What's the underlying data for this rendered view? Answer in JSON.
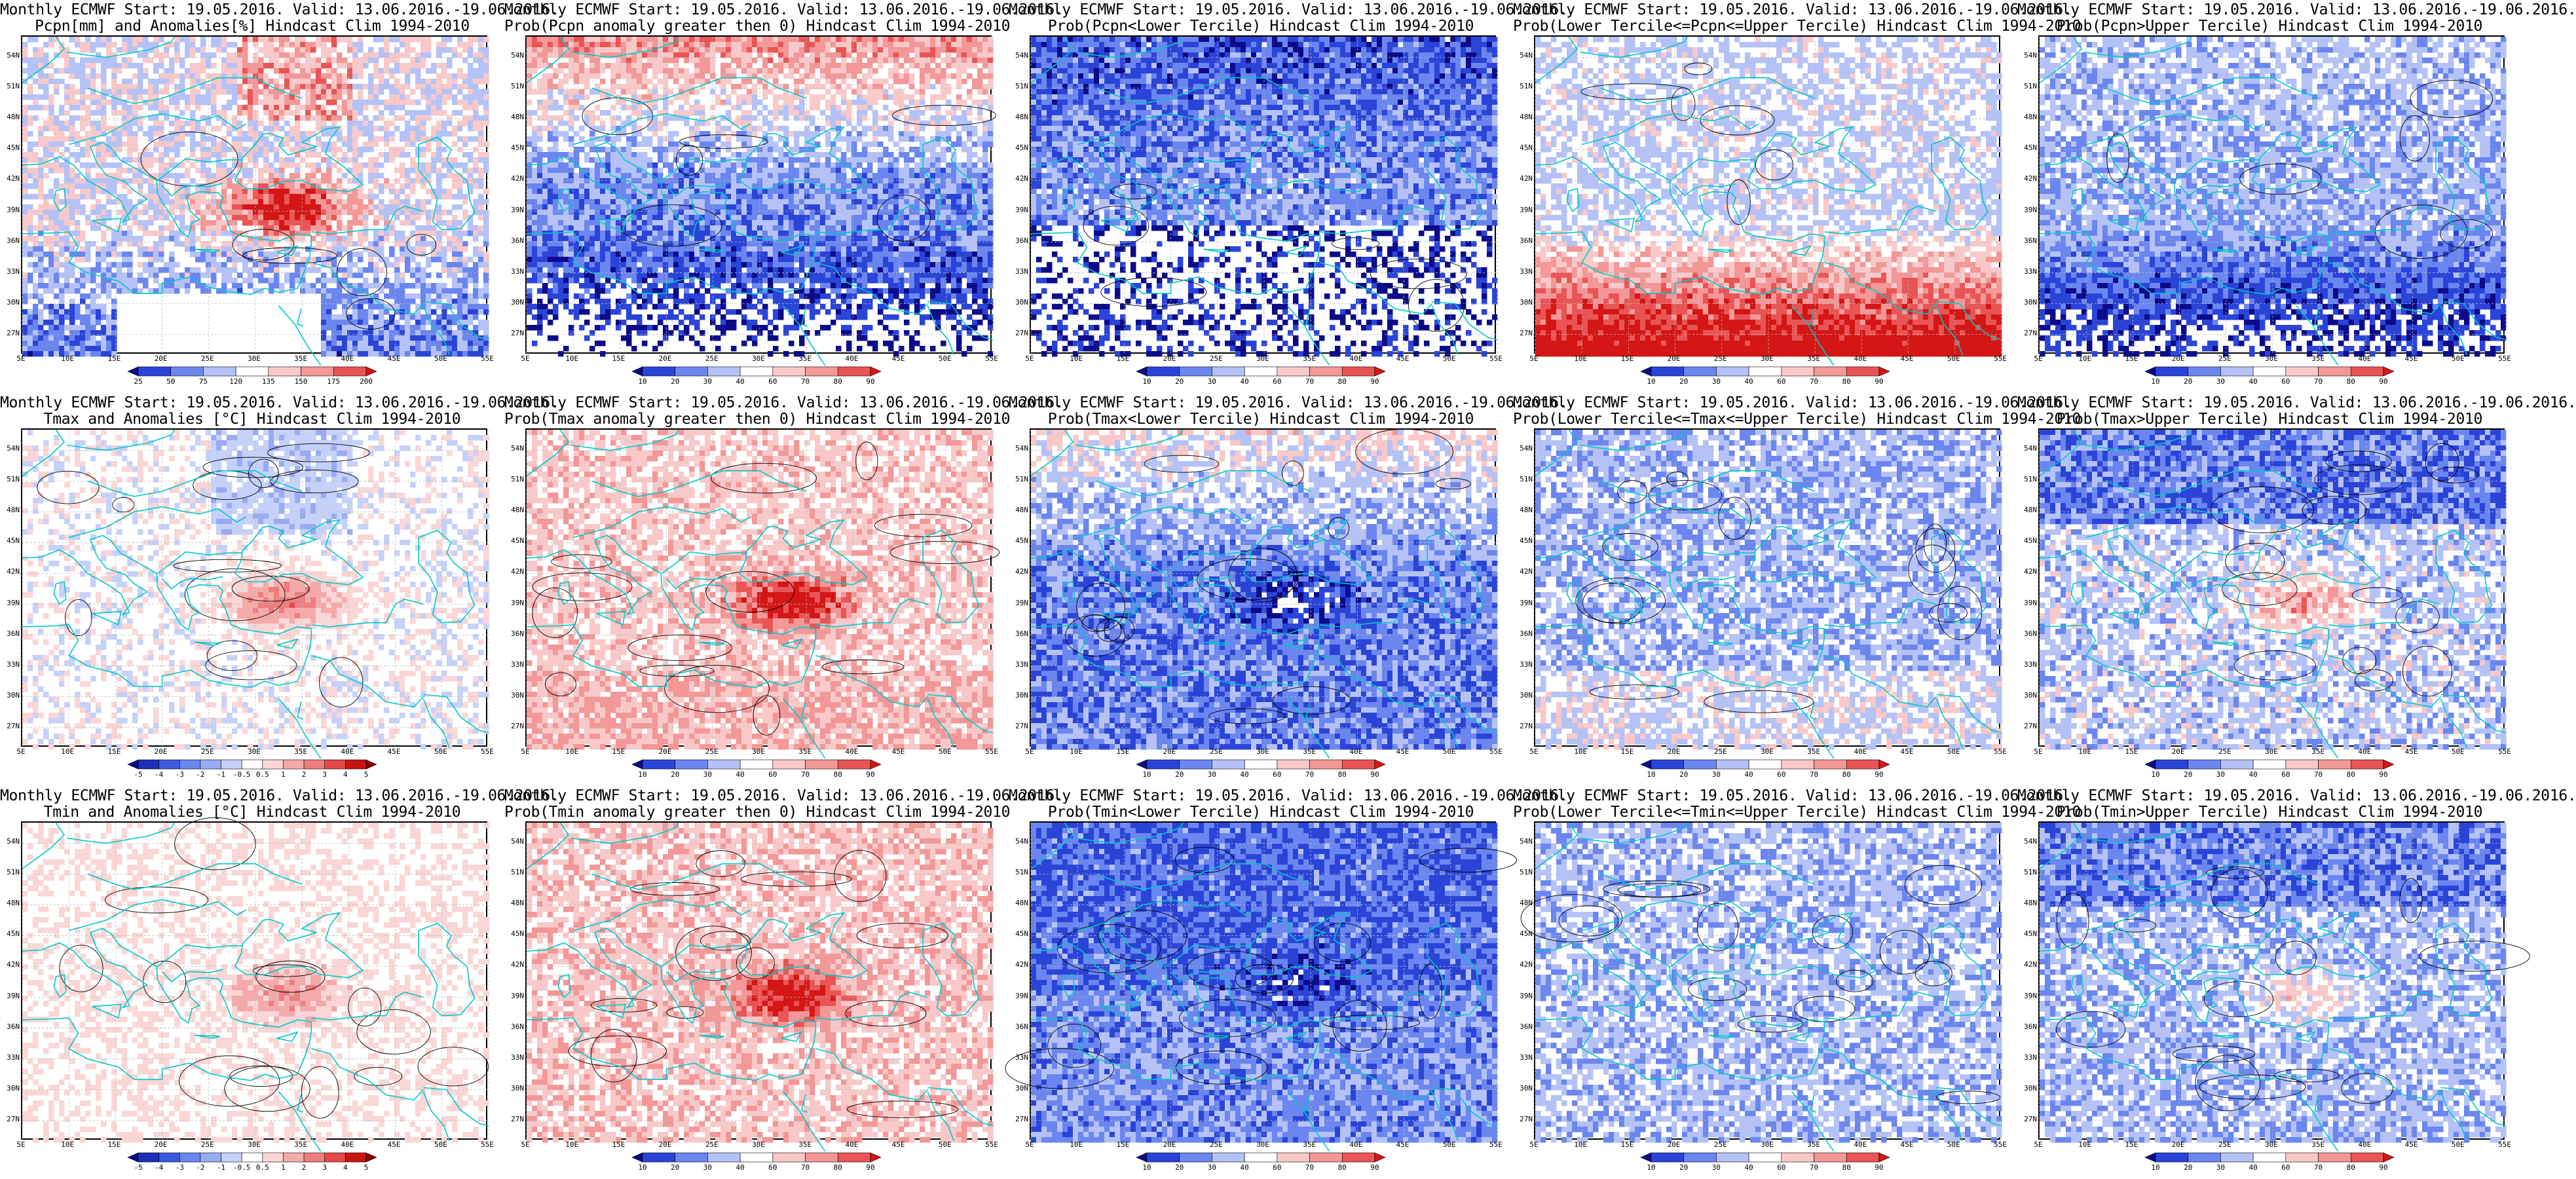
{
  "panels": [
    {
      "line1": "Monthly ECMWF Start: 19.05.2016. Valid: 13.06.2016.-19.06.2016.",
      "line2": "Pcpn[mm] and Anomalies[%] Hindcast Clim 1994-2010",
      "scale": "pcpn",
      "field": "pcpn-anom"
    },
    {
      "line1": "Monthly ECMWF Start: 19.05.2016. Valid: 13.06.2016.-19.06.2016.",
      "line2": "Prob(Pcpn anomaly greater then 0) Hindcast Clim 1994-2010",
      "scale": "prob",
      "field": "pcpn-pos"
    },
    {
      "line1": "Monthly ECMWF Start: 19.05.2016. Valid: 13.06.2016.-19.06.2016.",
      "line2": "Prob(Pcpn<Lower Tercile) Hindcast Clim 1994-2010",
      "scale": "prob",
      "field": "pcpn-lower"
    },
    {
      "line1": "Monthly ECMWF Start: 19.05.2016. Valid: 13.06.2016.-19.06.2016.",
      "line2": "Prob(Lower Tercile<=Pcpn<=Upper Tercile) Hindcast Clim 1994-2010",
      "scale": "prob",
      "field": "pcpn-middle"
    },
    {
      "line1": "Monthly ECMWF Start: 19.05.2016. Valid: 13.06.2016.-19.06.2016.",
      "line2": "Prob(Pcpn>Upper Tercile) Hindcast Clim 1994-2010",
      "scale": "prob",
      "field": "pcpn-upper"
    },
    {
      "line1": "Monthly ECMWF Start: 19.05.2016. Valid: 13.06.2016.-19.06.2016.",
      "line2": "Tmax and Anomalies [°C] Hindcast Clim 1994-2010",
      "scale": "temp",
      "field": "tmax-anom"
    },
    {
      "line1": "Monthly ECMWF Start: 19.05.2016. Valid: 13.06.2016.-19.06.2016.",
      "line2": "Prob(Tmax anomaly greater then 0) Hindcast Clim 1994-2010",
      "scale": "prob",
      "field": "tmax-pos"
    },
    {
      "line1": "Monthly ECMWF Start: 19.05.2016. Valid: 13.06.2016.-19.06.2016.",
      "line2": "Prob(Tmax<Lower Tercile) Hindcast Clim 1994-2010",
      "scale": "prob",
      "field": "tmax-lower"
    },
    {
      "line1": "Monthly ECMWF Start: 19.05.2016. Valid: 13.06.2016.-19.06.2016.",
      "line2": "Prob(Lower Tercile<=Tmax<=Upper Tercile) Hindcast Clim 1994-2010",
      "scale": "prob",
      "field": "tmax-middle"
    },
    {
      "line1": "Monthly ECMWF Start: 19.05.2016. Valid: 13.06.2016.-19.06.2016.",
      "line2": "Prob(Tmax>Upper Tercile) Hindcast Clim 1994-2010",
      "scale": "prob",
      "field": "tmax-upper"
    },
    {
      "line1": "Monthly ECMWF Start: 19.05.2016. Valid: 13.06.2016.-19.06.2016.",
      "line2": "Tmin and Anomalies [°C] Hindcast Clim 1994-2010",
      "scale": "temp",
      "field": "tmin-anom"
    },
    {
      "line1": "Monthly ECMWF Start: 19.05.2016. Valid: 13.06.2016.-19.06.2016.",
      "line2": "Prob(Tmin anomaly greater then 0) Hindcast Clim 1994-2010",
      "scale": "prob",
      "field": "tmin-pos"
    },
    {
      "line1": "Monthly ECMWF Start: 19.05.2016. Valid: 13.06.2016.-19.06.2016.",
      "line2": "Prob(Tmin<Lower Tercile) Hindcast Clim 1994-2010",
      "scale": "prob",
      "field": "tmin-lower"
    },
    {
      "line1": "Monthly ECMWF Start: 19.05.2016. Valid: 13.06.2016.-19.06.2016.",
      "line2": "Prob(Lower Tercile<=Tmin<=Upper Tercile) Hindcast Clim 1994-2010",
      "scale": "prob",
      "field": "tmin-middle"
    },
    {
      "line1": "Monthly ECMWF Start: 19.05.2016. Valid: 13.06.2016.-19.06.2016.",
      "line2": "Prob(Tmin>Upper Tercile) Hindcast Clim 1994-2010",
      "scale": "prob",
      "field": "tmin-upper"
    }
  ],
  "axes": {
    "lat_labels": [
      "54N",
      "51N",
      "48N",
      "45N",
      "42N",
      "39N",
      "36N",
      "33N",
      "30N",
      "27N"
    ],
    "lat_values": [
      54,
      51,
      48,
      45,
      42,
      39,
      36,
      33,
      30,
      27
    ],
    "lon_labels": [
      "5E",
      "10E",
      "15E",
      "20E",
      "25E",
      "30E",
      "35E",
      "40E",
      "45E",
      "50E",
      "55E"
    ],
    "lon_values": [
      5,
      10,
      15,
      20,
      25,
      30,
      35,
      40,
      45,
      50,
      55
    ],
    "lat_range": [
      25,
      56
    ],
    "lon_range": [
      5,
      55
    ]
  },
  "scales": {
    "pcpn": {
      "labels": [
        "25",
        "50",
        "75",
        "120",
        "135",
        "150",
        "175",
        "200"
      ],
      "colors": [
        "#0c0c8a",
        "#2b44d8",
        "#6b86ef",
        "#b4c2f7",
        "#ffffff",
        "#f9c9c9",
        "#f39797",
        "#e95555",
        "#d41616"
      ]
    },
    "prob": {
      "labels": [
        "10",
        "20",
        "30",
        "40",
        "60",
        "70",
        "80",
        "90"
      ],
      "colors": [
        "#0c0c8a",
        "#2b44d8",
        "#6b86ef",
        "#b4c2f7",
        "#ffffff",
        "#f9c9c9",
        "#f39797",
        "#e95555",
        "#d41616"
      ]
    },
    "temp": {
      "labels": [
        "-5",
        "-4",
        "-3",
        "-2",
        "-1",
        "-0.5",
        "0.5",
        "1",
        "2",
        "3",
        "4",
        "5"
      ],
      "colors": [
        "#0c0c8a",
        "#1e2fb8",
        "#3b5ae0",
        "#6b86ef",
        "#98abf4",
        "#c6d1f9",
        "#ffffff",
        "#fbd6d6",
        "#f5aaaa",
        "#ee7d7d",
        "#e44848",
        "#c91414",
        "#8a0000"
      ]
    }
  },
  "colors": {
    "coast": "#00c8c8",
    "contour": "#000000",
    "grid": "#bbbbbb"
  }
}
